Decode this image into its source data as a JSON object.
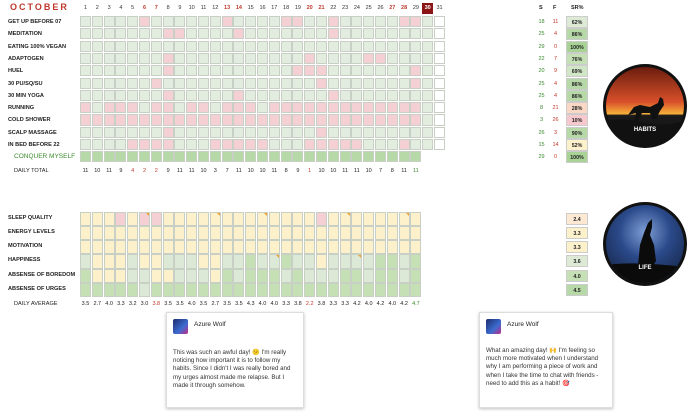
{
  "month": "OCTOBER",
  "days": [
    "1",
    "2",
    "3",
    "4",
    "5",
    "6",
    "7",
    "8",
    "9",
    "10",
    "11",
    "12",
    "13",
    "14",
    "15",
    "16",
    "17",
    "18",
    "19",
    "20",
    "21",
    "22",
    "23",
    "24",
    "25",
    "26",
    "27",
    "28",
    "29",
    "30",
    "31"
  ],
  "weekend_days": [
    6,
    7,
    13,
    14,
    20,
    21,
    27,
    28
  ],
  "today": 30,
  "habits": [
    {
      "name": "GET UP BEFORE 07",
      "row": "gggggpggggggpggggppggpgggggppgg",
      "s": "18",
      "f": "11",
      "pct": "62%",
      "pct_color": "#dcead6"
    },
    {
      "name": "MEDITATION",
      "row": "gggggggppggggpgggggggpgggggggpg",
      "s": "25",
      "f": "4",
      "pct": "86%",
      "pct_color": "#b7d8a7"
    },
    {
      "name": "EATING 100% VEGAN",
      "row": "ggggggggggggggggggggggggggggggg",
      "s": "29",
      "f": "0",
      "pct": "100%",
      "pct_color": "#a9d296"
    },
    {
      "name": "ADAPTOGEN",
      "row": "gggggggpgggggggggggpggggppggggg",
      "s": "22",
      "f": "7",
      "pct": "76%",
      "pct_color": "#c4e0b4"
    },
    {
      "name": "HUEL",
      "row": "gggggggpggggggggggpppgggggggpgg",
      "s": "20",
      "f": "9",
      "pct": "69%",
      "pct_color": "#d1e6c6"
    },
    {
      "name": "30 PU/SQ/SU",
      "row": "ggggggpgggggggggggggpgggggggpgg",
      "s": "25",
      "f": "4",
      "pct": "86%",
      "pct_color": "#b7d8a7"
    },
    {
      "name": "30 MIN YOGA",
      "row": "gggggggpgggggpgggggggpggggggggg",
      "s": "25",
      "f": "4",
      "pct": "86%",
      "pct_color": "#b7d8a7"
    },
    {
      "name": "RUNNING",
      "row": "pgpppgppgppgpppgppppppppppppppp",
      "s": "8",
      "f": "21",
      "pct": "28%",
      "pct_color": "#f9d9c6"
    },
    {
      "name": "COLD SHOWER",
      "row": "ppppppppppppppppppppppppppppppg",
      "s": "3",
      "f": "26",
      "pct": "10%",
      "pct_color": "#f6c9cf"
    },
    {
      "name": "SCALP MASSAGE",
      "row": "gggggggpggggggggggggpgggggggggg",
      "s": "26",
      "f": "3",
      "pct": "90%",
      "pct_color": "#b7d8a7"
    },
    {
      "name": "IN BED BEFORE 22",
      "row": "ggggppppgggpppppgggpppppgggpggg",
      "s": "15",
      "f": "14",
      "pct": "52%",
      "pct_color": "#fdf1cc"
    }
  ],
  "conquer": {
    "name": "CONQUER MYSELF",
    "s": "29",
    "f": "0",
    "pct": "100%",
    "pct_color": "#a9d296"
  },
  "daily_total_label": "DAILY TOTAL",
  "daily_totals": [
    "11",
    "10",
    "11",
    "9",
    "4",
    "2",
    "2",
    "9",
    "11",
    "11",
    "10",
    "3",
    "7",
    "11",
    "10",
    "10",
    "11",
    "8",
    "9",
    "1",
    "10",
    "10",
    "11",
    "11",
    "10",
    "7",
    "8",
    "11",
    "11"
  ],
  "life": [
    {
      "name": "SLEEP QUALITY",
      "row": "yyypyppyyyyyyyyyyyyypyyyyyyyyyy",
      "score": "2.4",
      "score_color": "#fde9d3"
    },
    {
      "name": "ENERGY LEVELS",
      "row": "yyyyyyyyyyyyyyyyyyyyyyyyyyyyyyy",
      "score": "3.3",
      "score_color": "#fdf1cc"
    },
    {
      "name": "MOTIVATION",
      "row": "yyyyyyyyyyyyyyyyyyyyyyyyyyyyyyy",
      "score": "3.3",
      "score_color": "#fdf1cc"
    },
    {
      "name": "HAPPINESS",
      "row": "lyyylyylllyyllmllmllyllllmmlmlm",
      "score": "3.6",
      "score_color": "#dcead6"
    },
    {
      "name": "ABSENSE OF BOREDOM",
      "row": "myyyllyylllymlmmmlmlllmmlmmlmmm",
      "score": "4.0",
      "score_color": "#c4e0b4"
    },
    {
      "name": "ABSENSE OF URGES",
      "row": "mmmmmlmmmmmmmmmmmmmmmmmmmmmmmmm",
      "score": "4.5",
      "score_color": "#b7d8a7"
    }
  ],
  "daily_average_label": "DAILY AVERAGE",
  "daily_averages": [
    "3.5",
    "2.7",
    "4.0",
    "3.3",
    "3.2",
    "3.0",
    "3.8",
    "3.5",
    "3.5",
    "4.0",
    "3.5",
    "2.7",
    "3.5",
    "3.5",
    "4.3",
    "4.0",
    "4.0",
    "3.3",
    "3.8",
    "2.2",
    "3.8",
    "3.3",
    "3.3",
    "4.2",
    "4.0",
    "4.2",
    "4.0",
    "4.2",
    "4.7"
  ],
  "summary_headers": {
    "s": "S",
    "f": "F",
    "pct": "SR%"
  },
  "badges": {
    "habits": "HABITS",
    "life": "LIFE"
  },
  "comments": [
    {
      "author": "Azure Wolf",
      "text": "This was such an awful day! 😕 I'm really noticing how important it is to follow my habits. Since I didn't I was really bored and my urges almost made me relapse. But I made it through somehow."
    },
    {
      "author": "Azure Wolf",
      "text": "What an amazing day! 🙌 I'm feeling so much more motivated when I understand why I am performing a piece of work and when I take the time to chat with friends - need to add this as a habit! 🎯"
    }
  ],
  "colors": {
    "green": "#e2ede0",
    "pink": "#f4cfd4",
    "today": "#8b1414",
    "accent_red": "#c0392b",
    "accent_green": "#3b8a2e"
  }
}
